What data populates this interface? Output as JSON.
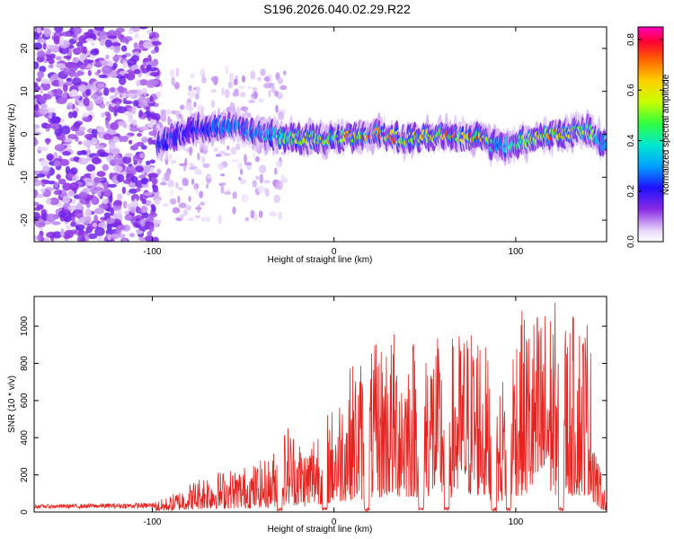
{
  "title": "S196.2026.040.02.29.R22",
  "colors": {
    "snr_line": "#e8231f",
    "axis": "#000000",
    "low_amp": "#d8c0f2",
    "mid_amp": "#6a00d8"
  },
  "chart_data": [
    {
      "type": "heatmap",
      "name": "spectrogram",
      "xlabel": "Height of straight line (km)",
      "ylabel": "Frequency (Hz)",
      "xlim": [
        -165,
        150
      ],
      "ylim": [
        -25,
        25
      ],
      "xticks": [
        -100,
        0,
        100
      ],
      "yticks": [
        -20,
        -10,
        0,
        10,
        20
      ],
      "colorbar": {
        "label": "Normalized spectral amplitude",
        "range": [
          0,
          0.85
        ],
        "ticks": [
          0.0,
          0.2,
          0.4,
          0.6,
          0.8
        ]
      },
      "dominant_band": {
        "x": [
          -95,
          -80,
          -60,
          -40,
          -20,
          0,
          20,
          40,
          60,
          80,
          90,
          100,
          120,
          140,
          148
        ],
        "frequency": [
          -2,
          1,
          2,
          0,
          -1,
          -1,
          0,
          -1,
          0,
          -1,
          -3,
          -2,
          0,
          1,
          -2
        ],
        "peak_amplitude": [
          0.25,
          0.2,
          0.3,
          0.35,
          0.55,
          0.6,
          0.8,
          0.75,
          0.7,
          0.8,
          0.3,
          0.5,
          0.75,
          0.55,
          0.3
        ]
      }
    },
    {
      "type": "line",
      "name": "snr",
      "xlabel": "Height of straight line (km)",
      "ylabel": "SNR (10 * v/v)",
      "xlim": [
        -165,
        150
      ],
      "ylim": [
        0,
        1160
      ],
      "xticks": [
        -100,
        0,
        100
      ],
      "yticks": [
        0,
        200,
        400,
        600,
        800,
        1000
      ],
      "envelope": {
        "x": [
          -165,
          -100,
          -90,
          -70,
          -60,
          -45,
          -35,
          -25,
          -15,
          -10,
          0,
          10,
          20,
          30,
          40,
          50,
          60,
          70,
          80,
          90,
          100,
          110,
          120,
          130,
          140,
          145,
          150
        ],
        "y": [
          40,
          50,
          90,
          220,
          230,
          260,
          300,
          500,
          350,
          500,
          580,
          820,
          870,
          1000,
          950,
          1050,
          900,
          1000,
          1060,
          620,
          1080,
          1100,
          1160,
          1060,
          1120,
          300,
          70
        ]
      }
    }
  ]
}
